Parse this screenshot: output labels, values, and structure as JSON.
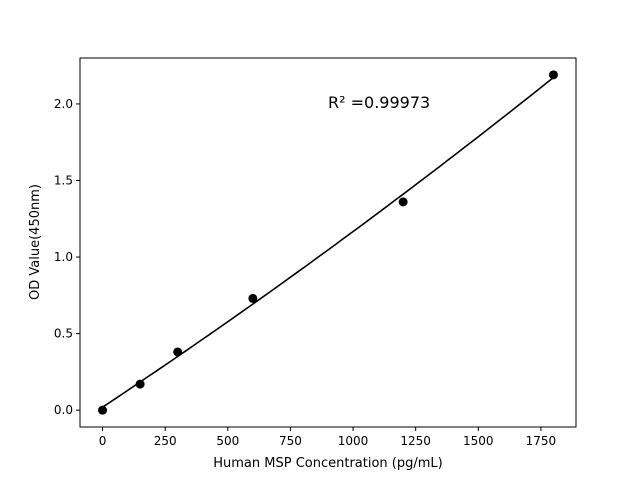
{
  "chart_data": {
    "type": "scatter",
    "title": "",
    "xlabel": "Human MSP Concentration (pg/mL)",
    "ylabel": "OD Value(450nm)",
    "xlim": [
      -90,
      1890
    ],
    "ylim": [
      -0.11,
      2.3
    ],
    "xticks": [
      0,
      250,
      500,
      750,
      1000,
      1250,
      1500,
      1750
    ],
    "xtick_labels": [
      "0",
      "250",
      "500",
      "750",
      "1000",
      "1250",
      "1500",
      "1750"
    ],
    "yticks": [
      0.0,
      0.5,
      1.0,
      1.5,
      2.0
    ],
    "ytick_labels": [
      "0.0",
      "0.5",
      "1.0",
      "1.5",
      "2.0"
    ],
    "grid": false,
    "points": {
      "x": [
        0,
        150,
        300,
        600,
        1200,
        1800
      ],
      "y": [
        0.0,
        0.17,
        0.38,
        0.73,
        1.36,
        2.19
      ],
      "color": "#000000"
    },
    "fit": {
      "type": "polynomial",
      "degree": 2,
      "color": "#000000"
    },
    "annotation": "R² =0.99973"
  }
}
